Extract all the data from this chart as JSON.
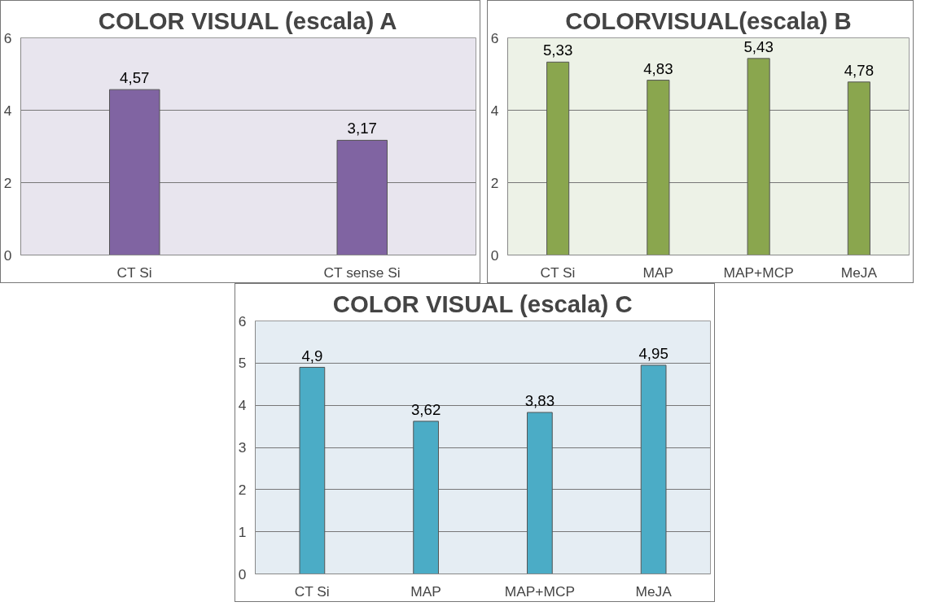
{
  "chart_data": [
    {
      "type": "bar",
      "title": "COLOR VISUAL (escala) A",
      "categories": [
        "CT Si",
        "CT sense Si"
      ],
      "values": [
        4.57,
        3.17
      ],
      "value_labels": [
        "4,57",
        "3,17"
      ],
      "color": "#8064a2",
      "ylim": [
        0,
        6
      ],
      "yticks": [
        0,
        2,
        4,
        6
      ],
      "grid": "y"
    },
    {
      "type": "bar",
      "title": "COLORVISUAL(escala) B",
      "categories": [
        "CT Si",
        "MAP",
        "MAP+MCP",
        "MeJA"
      ],
      "values": [
        5.33,
        4.83,
        5.43,
        4.78
      ],
      "value_labels": [
        "5,33",
        "4,83",
        "5,43",
        "4,78"
      ],
      "color": "#8aa64e",
      "ylim": [
        0,
        6
      ],
      "yticks": [
        0,
        2,
        4,
        6
      ],
      "grid": "y"
    },
    {
      "type": "bar",
      "title": "COLOR VISUAL (escala) C",
      "categories": [
        "CT Si",
        "MAP",
        "MAP+MCP",
        "MeJA"
      ],
      "values": [
        4.9,
        3.62,
        3.83,
        4.95
      ],
      "value_labels": [
        "4,9",
        "3,62",
        "3,83",
        "4,95"
      ],
      "color": "#4bacc6",
      "ylim": [
        0,
        6
      ],
      "yticks": [
        0,
        1,
        2,
        3,
        4,
        5,
        6
      ],
      "grid": "y"
    }
  ]
}
